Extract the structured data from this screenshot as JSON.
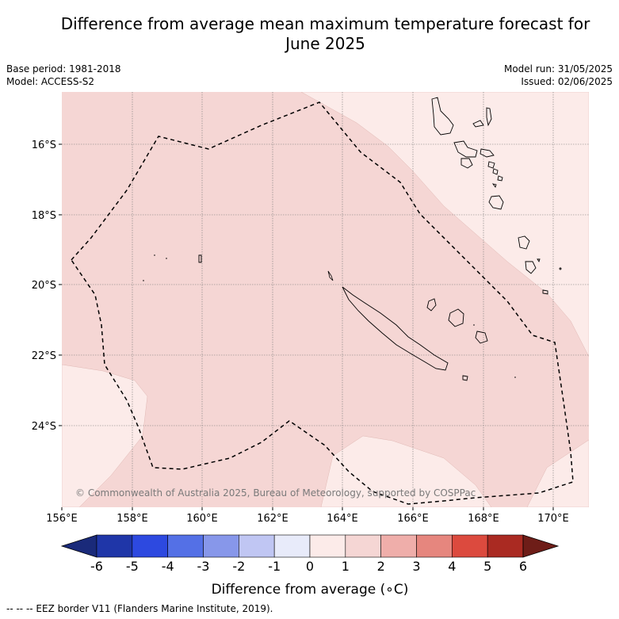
{
  "title_line1": "Difference from average mean maximum temperature forecast for",
  "title_line2": "June 2025",
  "meta": {
    "base_period": "Base period: 1981-2018",
    "model": "Model: ACCESS-S2",
    "model_run": "Model run: 31/05/2025",
    "issued": "Issued: 02/06/2025"
  },
  "map": {
    "copyright": "© Commonwealth of Australia 2025, Bureau of Meteorology, supported by COSPPac",
    "lat_labels": [
      "16°S",
      "18°S",
      "20°S",
      "22°S",
      "24°S"
    ],
    "lon_labels": [
      "156°E",
      "158°E",
      "160°E",
      "162°E",
      "164°E",
      "166°E",
      "168°E",
      "170°E"
    ],
    "fill_colors": {
      "anomaly_0_to_1": "#fcebe9",
      "anomaly_1_to_2": "#f5d6d4"
    }
  },
  "colorbar": {
    "labels": [
      "-6",
      "-5",
      "-4",
      "-3",
      "-2",
      "-1",
      "0",
      "1",
      "2",
      "3",
      "4",
      "5",
      "6"
    ],
    "colors": [
      "#1f36a8",
      "#2d49e0",
      "#5470e6",
      "#8797ea",
      "#c0c6f3",
      "#e8ebfa",
      "#fcebe9",
      "#f5d6d4",
      "#efaeaa",
      "#e6867e",
      "#dc4a3e",
      "#aa2a22"
    ],
    "under_color": "#1a2a7a",
    "over_color": "#6e1d18",
    "label": "Difference from average (∘C)"
  },
  "footnote": "--  --  -- EEZ border V11 (Flanders Marine Institute, 2019)."
}
